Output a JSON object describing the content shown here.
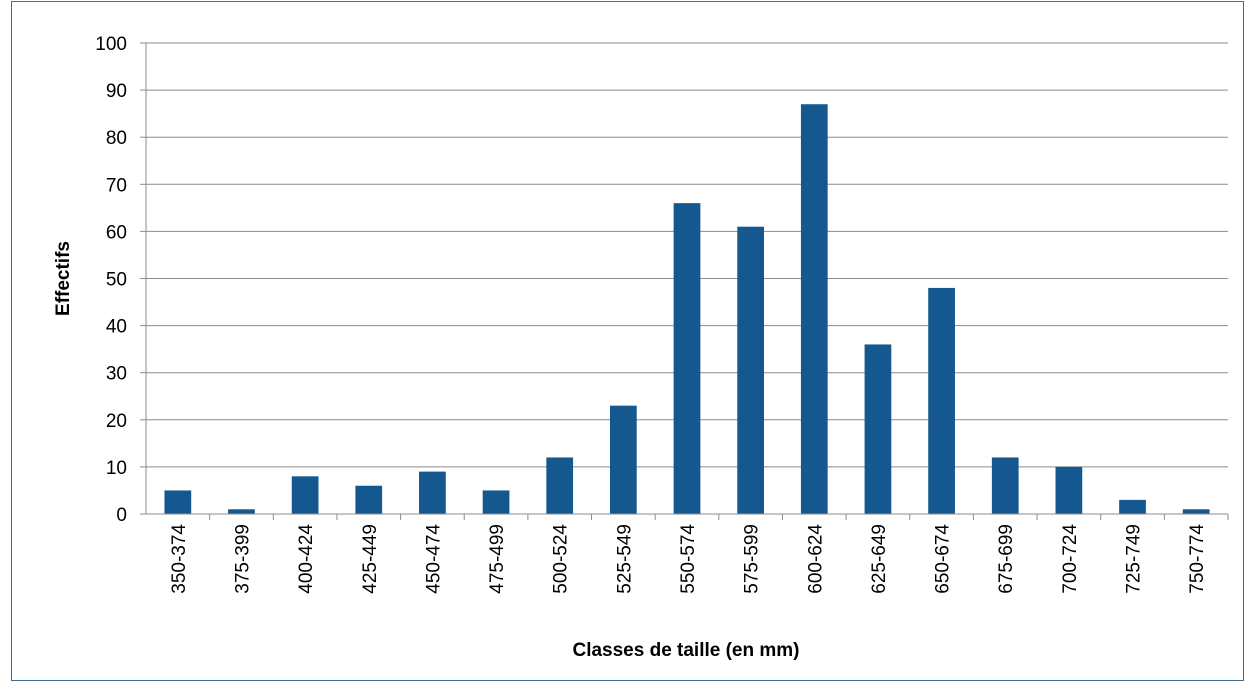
{
  "chart_data": {
    "type": "bar",
    "categories": [
      "350-374",
      "375-399",
      "400-424",
      "425-449",
      "450-474",
      "475-499",
      "500-524",
      "525-549",
      "550-574",
      "575-599",
      "600-624",
      "625-649",
      "650-674",
      "675-699",
      "700-724",
      "725-749",
      "750-774"
    ],
    "values": [
      5,
      1,
      8,
      6,
      9,
      5,
      12,
      23,
      66,
      61,
      87,
      36,
      48,
      12,
      10,
      3,
      1
    ],
    "title": "",
    "xlabel": "Classes de taille (en mm)",
    "ylabel": "Effectifs",
    "ylim": [
      0,
      100
    ],
    "yticks": [
      0,
      10,
      20,
      30,
      40,
      50,
      60,
      70,
      80,
      90,
      100
    ],
    "grid": true,
    "legend": "none",
    "colors": {
      "bar": "#15588f",
      "grid": "#8c8c8c",
      "axis": "#8c8c8c",
      "frame": "#3d6f96"
    }
  }
}
